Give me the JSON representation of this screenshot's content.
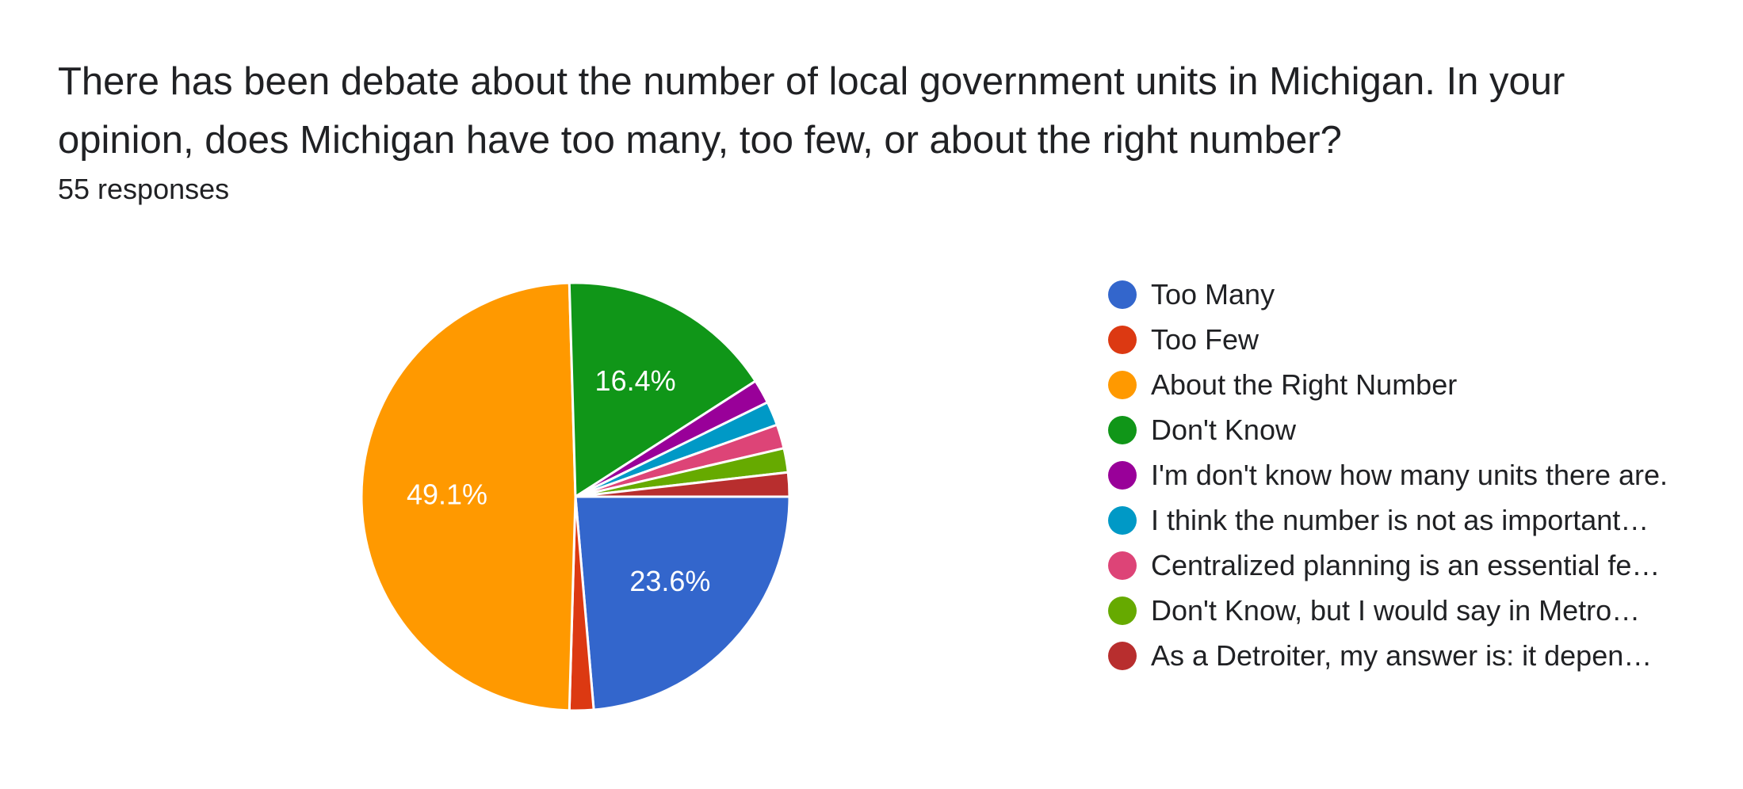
{
  "question": "There has been debate about the number of local government units in Michigan. In your opinion, does Michigan have too many, too few, or about the right number?",
  "responses_label": "55 responses",
  "chart_data": {
    "type": "pie",
    "total_responses": 55,
    "slices": [
      {
        "name": "Too Many",
        "count": 13,
        "percent": 23.6,
        "label": "23.6%",
        "color": "#3366cc"
      },
      {
        "name": "Too Few",
        "count": 1,
        "percent": 1.8,
        "label": "",
        "color": "#dc3912"
      },
      {
        "name": "About the Right Number",
        "count": 27,
        "percent": 49.1,
        "label": "49.1%",
        "color": "#ff9900"
      },
      {
        "name": "Don't Know",
        "count": 9,
        "percent": 16.4,
        "label": "16.4%",
        "color": "#109618"
      },
      {
        "name": "I'm don't know how many units there are.",
        "count": 1,
        "percent": 1.8,
        "label": "",
        "color": "#990099"
      },
      {
        "name": "I think the number is not as important…",
        "count": 1,
        "percent": 1.8,
        "label": "",
        "color": "#0099c6"
      },
      {
        "name": "Centralized planning is an essential fe…",
        "count": 1,
        "percent": 1.8,
        "label": "",
        "color": "#dd4477"
      },
      {
        "name": "Don't Know, but I would say in Metro…",
        "count": 1,
        "percent": 1.8,
        "label": "",
        "color": "#66aa00"
      },
      {
        "name": "As a Detroiter, my answer is: it depen…",
        "count": 1,
        "percent": 1.8,
        "label": "",
        "color": "#b82e2e"
      }
    ],
    "legend_placement": "right"
  }
}
